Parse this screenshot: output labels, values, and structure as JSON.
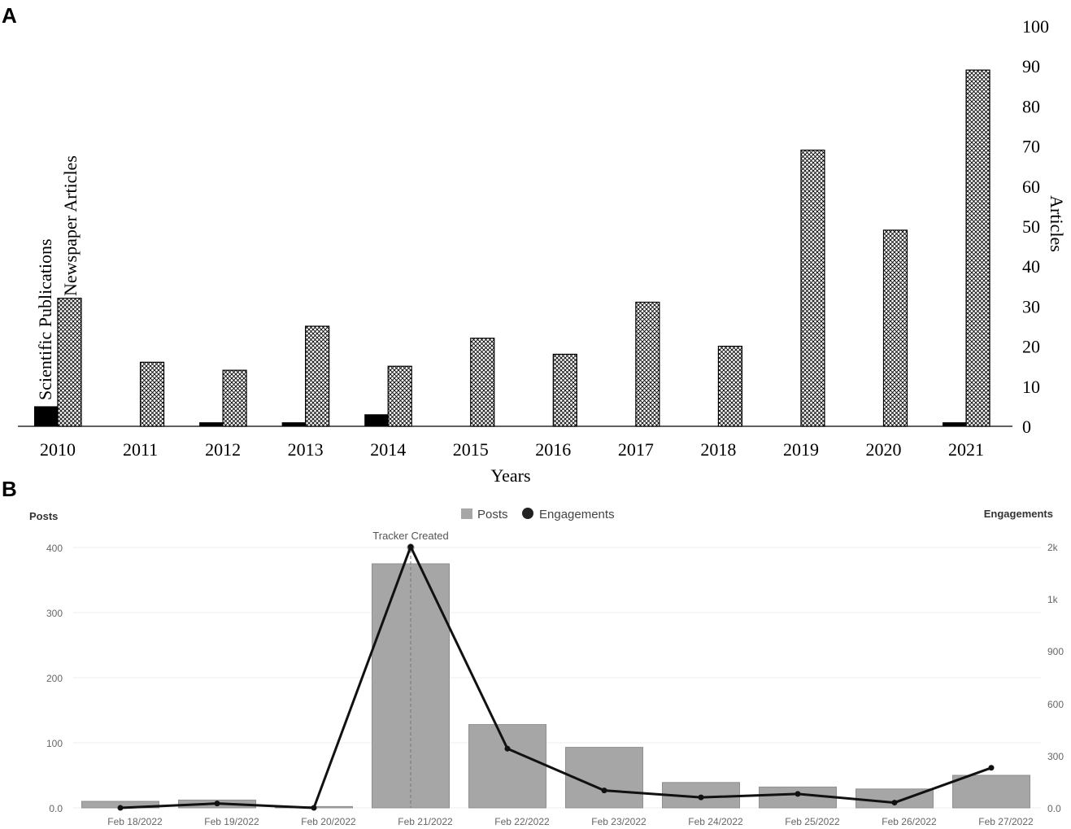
{
  "panels": {
    "a_label": "A",
    "b_label": "B"
  },
  "chart_data": [
    {
      "type": "bar",
      "categories": [
        "2010",
        "2011",
        "2012",
        "2013",
        "2014",
        "2015",
        "2016",
        "2017",
        "2018",
        "2019",
        "2020",
        "2021"
      ],
      "series": [
        {
          "name": "Scientific Publications",
          "values": [
            5,
            0,
            1,
            1,
            3,
            0,
            0,
            0,
            0,
            0,
            0,
            1
          ],
          "color": "#000000"
        },
        {
          "name": "Newspaper Articles",
          "values": [
            32,
            16,
            14,
            25,
            15,
            22,
            18,
            31,
            20,
            69,
            49,
            89
          ],
          "pattern": "crosshatch"
        }
      ],
      "xlabel": "Years",
      "ylabel": "Articles",
      "ylim": [
        0,
        100
      ],
      "yticks": [
        0,
        10,
        20,
        30,
        40,
        50,
        60,
        70,
        80,
        90,
        100
      ],
      "y_axis_side": "right",
      "legend": "vertical labels above 2010 bars",
      "grid": false
    },
    {
      "type": "bar",
      "categories": [
        "Feb 18/2022",
        "Feb 19/2022",
        "Feb 20/2022",
        "Feb 21/2022",
        "Feb 22/2022",
        "Feb 23/2022",
        "Feb 24/2022",
        "Feb 25/2022",
        "Feb 26/2022",
        "Feb 27/2022"
      ],
      "series": [
        {
          "name": "Posts",
          "type": "bar",
          "axis": "left",
          "values": [
            10,
            12,
            2,
            375,
            128,
            93,
            39,
            32,
            29,
            50
          ],
          "color": "#a6a6a6"
        },
        {
          "name": "Engagements",
          "type": "line",
          "axis": "right",
          "values": [
            0,
            25,
            0,
            1500,
            340,
            100,
            60,
            80,
            30,
            230
          ],
          "color": "#111111"
        }
      ],
      "ylabel_left": "Posts",
      "ylabel_right": "Engagements",
      "ylim_left": [
        0,
        400
      ],
      "yticks_left": [
        "0.0",
        "100",
        "200",
        "300",
        "400"
      ],
      "ylim_right": [
        0,
        1800
      ],
      "yticks_right": [
        "0.0",
        "300",
        "600",
        "900",
        "1k",
        "2k"
      ],
      "legend": "top-center",
      "annotation": {
        "label": "Tracker Created",
        "category": "Feb 21/2022"
      },
      "grid": true
    }
  ]
}
